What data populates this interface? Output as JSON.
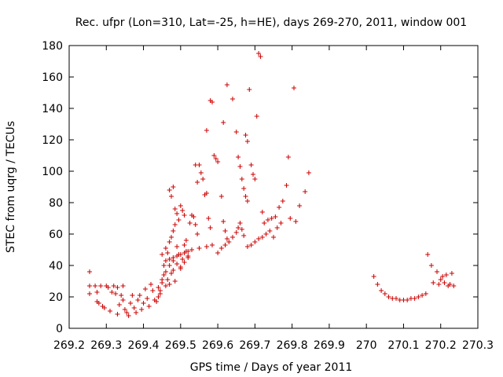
{
  "chart_data": {
    "type": "scatter",
    "title": "Rec. ufpr (Lon=310, Lat=-25, h=HE), days 269-270, 2011, window 001",
    "xlabel": "GPS time / Days of year 2011",
    "ylabel": "STEC from uqrg / TECUs",
    "xlim": [
      269.2,
      270.3
    ],
    "ylim": [
      0,
      180
    ],
    "xticks": [
      "269.2",
      "269.3",
      "269.4",
      "269.5",
      "269.6",
      "269.7",
      "269.8",
      "269.9",
      "270",
      "270.1",
      "270.2",
      "270.3"
    ],
    "yticks": [
      "0",
      "20",
      "40",
      "60",
      "80",
      "100",
      "120",
      "140",
      "160",
      "180"
    ],
    "marker": "+",
    "color": "#cc0000",
    "grid": false,
    "points": [
      [
        269.255,
        36
      ],
      [
        269.255,
        27
      ],
      [
        269.255,
        22
      ],
      [
        269.27,
        27
      ],
      [
        269.275,
        23
      ],
      [
        269.275,
        17
      ],
      [
        269.28,
        16
      ],
      [
        269.285,
        27
      ],
      [
        269.29,
        14
      ],
      [
        269.295,
        13
      ],
      [
        269.3,
        27
      ],
      [
        269.305,
        26
      ],
      [
        269.31,
        11
      ],
      [
        269.315,
        23
      ],
      [
        269.32,
        27
      ],
      [
        269.325,
        22
      ],
      [
        269.33,
        26
      ],
      [
        269.33,
        9
      ],
      [
        269.335,
        15
      ],
      [
        269.34,
        21
      ],
      [
        269.345,
        27
      ],
      [
        269.345,
        18
      ],
      [
        269.35,
        12
      ],
      [
        269.355,
        10
      ],
      [
        269.36,
        8
      ],
      [
        269.365,
        16
      ],
      [
        269.37,
        21
      ],
      [
        269.375,
        13
      ],
      [
        269.38,
        10
      ],
      [
        269.385,
        18
      ],
      [
        269.39,
        21
      ],
      [
        269.395,
        12
      ],
      [
        269.4,
        16
      ],
      [
        269.405,
        25
      ],
      [
        269.41,
        19
      ],
      [
        269.415,
        14
      ],
      [
        269.42,
        28
      ],
      [
        269.425,
        24
      ],
      [
        269.43,
        18
      ],
      [
        269.435,
        17
      ],
      [
        269.44,
        26
      ],
      [
        269.445,
        22
      ],
      [
        269.45,
        29
      ],
      [
        269.455,
        34
      ],
      [
        269.46,
        27
      ],
      [
        269.465,
        31
      ],
      [
        269.47,
        28
      ],
      [
        269.475,
        35
      ],
      [
        269.48,
        37
      ],
      [
        269.485,
        30
      ],
      [
        269.45,
        47
      ],
      [
        269.455,
        40
      ],
      [
        269.46,
        51
      ],
      [
        269.465,
        48
      ],
      [
        269.47,
        55
      ],
      [
        269.475,
        58
      ],
      [
        269.48,
        62
      ],
      [
        269.485,
        66
      ],
      [
        269.49,
        73
      ],
      [
        269.495,
        69
      ],
      [
        269.47,
        88
      ],
      [
        269.475,
        84
      ],
      [
        269.48,
        90
      ],
      [
        269.485,
        76
      ],
      [
        269.49,
        52
      ],
      [
        269.495,
        47
      ],
      [
        269.5,
        78
      ],
      [
        269.505,
        75
      ],
      [
        269.51,
        72
      ],
      [
        269.515,
        56
      ],
      [
        269.5,
        39
      ],
      [
        269.505,
        44
      ],
      [
        269.51,
        53
      ],
      [
        269.515,
        49
      ],
      [
        269.52,
        46
      ],
      [
        269.525,
        67
      ],
      [
        269.53,
        72
      ],
      [
        269.535,
        71
      ],
      [
        269.54,
        66
      ],
      [
        269.545,
        60
      ],
      [
        269.54,
        104
      ],
      [
        269.545,
        93
      ],
      [
        269.55,
        104
      ],
      [
        269.555,
        99
      ],
      [
        269.56,
        95
      ],
      [
        269.565,
        85
      ],
      [
        269.57,
        86
      ],
      [
        269.575,
        70
      ],
      [
        269.58,
        64
      ],
      [
        269.585,
        53
      ],
      [
        269.57,
        126
      ],
      [
        269.58,
        145
      ],
      [
        269.585,
        144
      ],
      [
        269.59,
        110
      ],
      [
        269.595,
        108
      ],
      [
        269.6,
        106
      ],
      [
        269.61,
        84
      ],
      [
        269.615,
        68
      ],
      [
        269.62,
        62
      ],
      [
        269.625,
        57
      ],
      [
        269.6,
        48
      ],
      [
        269.61,
        51
      ],
      [
        269.62,
        53
      ],
      [
        269.63,
        55
      ],
      [
        269.64,
        58
      ],
      [
        269.65,
        61
      ],
      [
        269.655,
        64
      ],
      [
        269.66,
        67
      ],
      [
        269.665,
        63
      ],
      [
        269.67,
        59
      ],
      [
        269.615,
        131
      ],
      [
        269.625,
        155
      ],
      [
        269.64,
        146
      ],
      [
        269.65,
        125
      ],
      [
        269.655,
        109
      ],
      [
        269.66,
        103
      ],
      [
        269.665,
        95
      ],
      [
        269.67,
        89
      ],
      [
        269.675,
        84
      ],
      [
        269.68,
        81
      ],
      [
        269.675,
        123
      ],
      [
        269.68,
        119
      ],
      [
        269.685,
        152
      ],
      [
        269.69,
        104
      ],
      [
        269.695,
        98
      ],
      [
        269.7,
        95
      ],
      [
        269.705,
        135
      ],
      [
        269.71,
        175
      ],
      [
        269.715,
        173
      ],
      [
        269.72,
        74
      ],
      [
        269.68,
        52
      ],
      [
        269.69,
        53
      ],
      [
        269.7,
        55
      ],
      [
        269.71,
        57
      ],
      [
        269.72,
        58
      ],
      [
        269.73,
        60
      ],
      [
        269.74,
        62
      ],
      [
        269.75,
        58
      ],
      [
        269.76,
        64
      ],
      [
        269.77,
        67
      ],
      [
        269.725,
        67
      ],
      [
        269.735,
        69
      ],
      [
        269.745,
        70
      ],
      [
        269.755,
        71
      ],
      [
        269.765,
        77
      ],
      [
        269.775,
        81
      ],
      [
        269.785,
        91
      ],
      [
        269.79,
        109
      ],
      [
        269.795,
        70
      ],
      [
        269.805,
        153
      ],
      [
        269.81,
        68
      ],
      [
        269.82,
        78
      ],
      [
        269.835,
        87
      ],
      [
        269.845,
        99
      ],
      [
        269.46,
        43
      ],
      [
        269.47,
        44
      ],
      [
        269.48,
        45
      ],
      [
        269.49,
        46
      ],
      [
        269.5,
        47
      ],
      [
        269.51,
        48
      ],
      [
        269.52,
        49
      ],
      [
        269.53,
        50
      ],
      [
        269.55,
        51
      ],
      [
        269.57,
        52
      ],
      [
        269.44,
        20
      ],
      [
        269.445,
        24
      ],
      [
        269.45,
        31
      ],
      [
        269.46,
        36
      ],
      [
        269.47,
        40
      ],
      [
        269.48,
        43
      ],
      [
        269.49,
        41
      ],
      [
        269.5,
        38
      ],
      [
        269.51,
        42
      ],
      [
        269.52,
        45
      ],
      [
        270.02,
        33
      ],
      [
        270.03,
        28
      ],
      [
        270.04,
        24
      ],
      [
        270.05,
        22
      ],
      [
        270.06,
        20
      ],
      [
        270.07,
        19
      ],
      [
        270.08,
        19
      ],
      [
        270.09,
        18
      ],
      [
        270.1,
        18
      ],
      [
        270.11,
        18
      ],
      [
        270.12,
        19
      ],
      [
        270.13,
        19
      ],
      [
        270.14,
        20
      ],
      [
        270.15,
        21
      ],
      [
        270.16,
        22
      ],
      [
        270.165,
        47
      ],
      [
        270.175,
        40
      ],
      [
        270.18,
        29
      ],
      [
        270.19,
        36
      ],
      [
        270.195,
        28
      ],
      [
        270.2,
        31
      ],
      [
        270.205,
        33
      ],
      [
        270.21,
        29
      ],
      [
        270.215,
        34
      ],
      [
        270.22,
        27
      ],
      [
        270.225,
        28
      ],
      [
        270.23,
        35
      ],
      [
        270.235,
        27
      ]
    ]
  }
}
